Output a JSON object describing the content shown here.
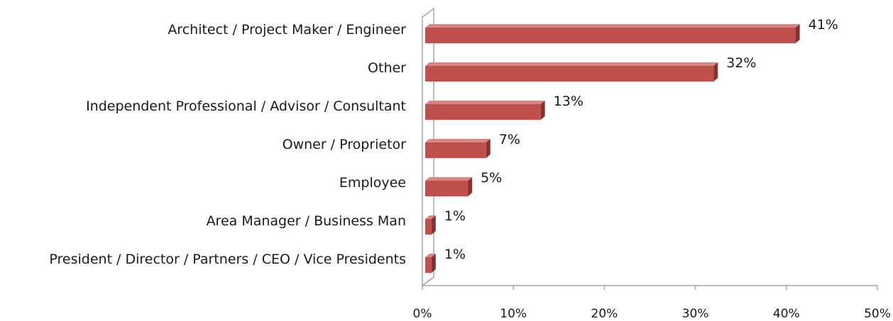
{
  "chart_data": {
    "type": "bar",
    "orientation": "horizontal",
    "style": "3d",
    "categories": [
      "Architect / Project Maker / Engineer",
      "Other",
      "Independent Professional / Advisor / Consultant",
      "Owner / Proprietor",
      "Employee",
      "Area Manager / Business Man",
      "President / Director / Partners / CEO / Vice Presidents"
    ],
    "values": [
      41,
      32,
      13,
      7,
      5,
      1,
      1
    ],
    "value_labels": [
      "41%",
      "32%",
      "13%",
      "7%",
      "5%",
      "1%",
      "1%"
    ],
    "xlim": [
      0,
      50
    ],
    "xticks": [
      0,
      10,
      20,
      30,
      40,
      50
    ],
    "xtick_labels": [
      "0%",
      "10%",
      "20%",
      "30%",
      "40%",
      "50%"
    ],
    "title": "",
    "xlabel": "",
    "ylabel": "",
    "grid": false,
    "legend": "none",
    "colors": {
      "bar_front": "#c0504d",
      "bar_top": "#d98583",
      "bar_side": "#8e2f2c",
      "axis": "#a6a6a6"
    }
  }
}
